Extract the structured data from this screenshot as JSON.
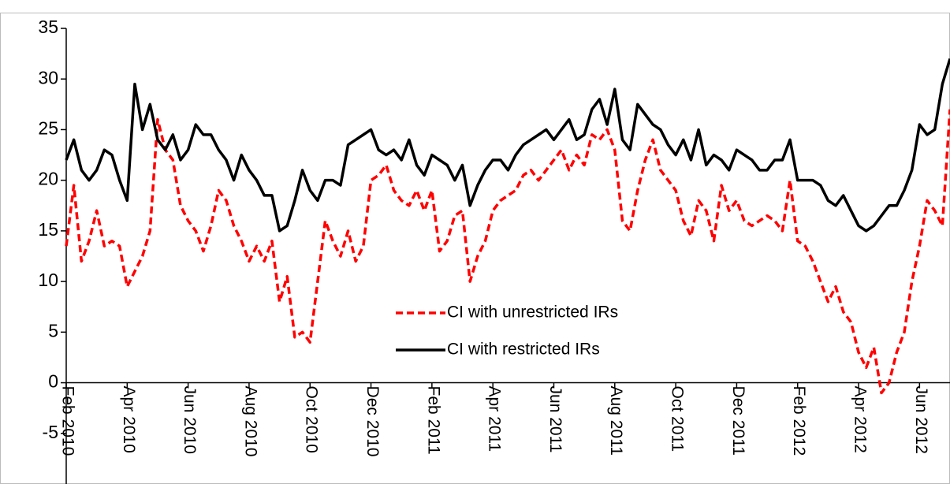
{
  "chart_data": {
    "type": "line",
    "categories": [
      "Feb 2010",
      null,
      null,
      null,
      null,
      null,
      null,
      null,
      "Apr 2010",
      null,
      null,
      null,
      null,
      null,
      null,
      null,
      "Jun 2010",
      null,
      null,
      null,
      null,
      null,
      null,
      null,
      "Aug 2010",
      null,
      null,
      null,
      null,
      null,
      null,
      null,
      "Oct 2010",
      null,
      null,
      null,
      null,
      null,
      null,
      null,
      "Dec 2010",
      null,
      null,
      null,
      null,
      null,
      null,
      null,
      "Feb 2011",
      null,
      null,
      null,
      null,
      null,
      null,
      null,
      "Apr 2011",
      null,
      null,
      null,
      null,
      null,
      null,
      null,
      "Jun 2011",
      null,
      null,
      null,
      null,
      null,
      null,
      null,
      "Aug 2011",
      null,
      null,
      null,
      null,
      null,
      null,
      null,
      "Oct 2011",
      null,
      null,
      null,
      null,
      null,
      null,
      null,
      "Dec 2011",
      null,
      null,
      null,
      null,
      null,
      null,
      null,
      "Feb 2012",
      null,
      null,
      null,
      null,
      null,
      null,
      null,
      "Apr 2012",
      null,
      null,
      null,
      null,
      null,
      null,
      null,
      "Jun 2012",
      null,
      null,
      null,
      null
    ],
    "series": [
      {
        "name": "CI with unrestricted IRs",
        "color": "#ff0000",
        "dashed": true,
        "values": [
          13.5,
          19.5,
          12,
          14,
          17,
          13.5,
          14,
          13.5,
          9.5,
          11,
          12.5,
          15,
          26,
          23,
          22,
          17.5,
          16,
          15,
          13,
          15.5,
          19,
          18,
          15.5,
          14,
          12,
          13.5,
          12,
          14,
          8,
          10.5,
          4.5,
          5,
          4,
          10,
          16,
          14,
          12.5,
          15,
          12,
          13.5,
          20,
          20.5,
          21.5,
          19,
          18,
          17.5,
          19,
          17,
          19,
          13,
          14,
          16.5,
          17,
          10,
          12.5,
          14,
          17,
          18,
          18.5,
          19,
          20.5,
          21,
          20,
          21,
          22,
          23,
          21,
          22.5,
          21.5,
          24.5,
          24,
          25,
          23,
          16,
          15,
          19,
          22,
          24,
          21,
          20,
          19,
          16,
          14.5,
          18,
          17,
          14,
          19.5,
          17,
          18,
          16,
          15.5,
          16,
          16.5,
          16,
          15,
          20,
          14,
          13.5,
          12,
          10,
          8,
          9.5,
          7,
          6,
          3,
          1.5,
          3.5,
          -1,
          0,
          3,
          5,
          10,
          13.5,
          18,
          17,
          15.5,
          27
        ]
      },
      {
        "name": "CI with restricted IRs",
        "color": "#000000",
        "dashed": false,
        "values": [
          22,
          24,
          21,
          20,
          21,
          23,
          22.5,
          20,
          18,
          29.5,
          25,
          27.5,
          24,
          23,
          24.5,
          22,
          23,
          25.5,
          24.5,
          24.5,
          23,
          22,
          20,
          22.5,
          21,
          20,
          18.5,
          18.5,
          15,
          15.5,
          18,
          21,
          19,
          18,
          20,
          20,
          19.5,
          23.5,
          24,
          24.5,
          25,
          23,
          22.5,
          23,
          22,
          24,
          21.5,
          20.5,
          22.5,
          22,
          21.5,
          20,
          21.5,
          17.5,
          19.5,
          21,
          22,
          22,
          21,
          22.5,
          23.5,
          24,
          24.5,
          25,
          24,
          25,
          26,
          24,
          24.5,
          27,
          28,
          25.5,
          29,
          24,
          23,
          27.5,
          26.5,
          25.5,
          25,
          23.5,
          22.5,
          24,
          22,
          25,
          21.5,
          22.5,
          22,
          21,
          23,
          22.5,
          22,
          21,
          21,
          22,
          22,
          24,
          20,
          20,
          20,
          19.5,
          18,
          17.5,
          18.5,
          17,
          15.5,
          15,
          15.5,
          16.5,
          17.5,
          17.5,
          19,
          21,
          25.5,
          24.5,
          25,
          29.5,
          32
        ]
      }
    ],
    "ylim": [
      -10,
      35
    ],
    "yticks": [
      -5,
      0,
      5,
      10,
      15,
      20,
      25,
      30,
      35
    ],
    "grid": false
  }
}
